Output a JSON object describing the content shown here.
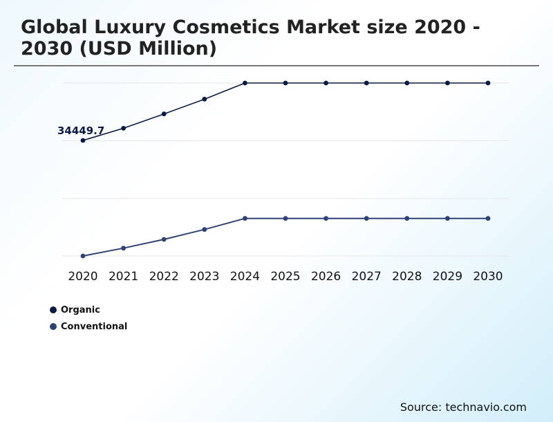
{
  "title": "Global Luxury Cosmetics Market size 2020 - 2030 (USD Million)",
  "source": "Source: technavio.com",
  "chart_data": {
    "type": "line",
    "title": "Global Luxury Cosmetics Market size 2020 - 2030 (USD Million)",
    "categories": [
      "2020",
      "2021",
      "2022",
      "2023",
      "2024",
      "2025",
      "2026",
      "2027",
      "2028",
      "2029",
      "2030"
    ],
    "series": [
      {
        "name": "Organic",
        "color": "#0b1a45",
        "values": [
          34449.7,
          38090,
          42350,
          46760,
          51570,
          51570,
          51570,
          51570,
          51570,
          51570,
          51570
        ]
      },
      {
        "name": "Conventional",
        "color": "#2e4274",
        "values": [
          0,
          2330,
          4950,
          7900,
          11200,
          11200,
          11200,
          11200,
          11200,
          11200,
          11200
        ]
      }
    ],
    "annotations": [
      {
        "series": "Organic",
        "category": "2020",
        "label": "34449.7"
      }
    ],
    "ylim": [
      0,
      51570
    ],
    "grid": true,
    "legend_position": "bottom-left",
    "y_axis_labels_shown": false
  }
}
